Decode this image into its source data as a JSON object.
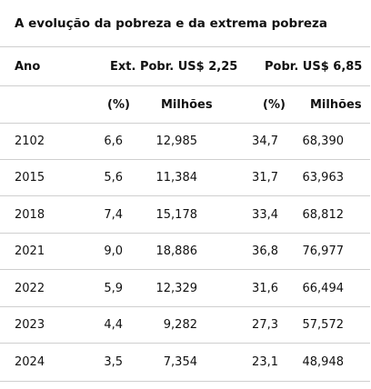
{
  "title": "A evolução da pobreza e da extrema pobreza",
  "header": {
    "col_year": "Ano",
    "col_ext": "Ext. Pobr. US$ 2,25",
    "col_pov": "Pobr. US$ 6,85"
  },
  "subheader": {
    "pct1": "(%)",
    "mil1": "Milhões",
    "pct2": "(%)",
    "mil2": "Milhões"
  },
  "rows": [
    {
      "year": "2102",
      "ext_pct": "6,6",
      "ext_mil": "12,985",
      "pov_pct": "34,7",
      "pov_mil": "68,390"
    },
    {
      "year": "2015",
      "ext_pct": "5,6",
      "ext_mil": "11,384",
      "pov_pct": "31,7",
      "pov_mil": "63,963"
    },
    {
      "year": "2018",
      "ext_pct": "7,4",
      "ext_mil": "15,178",
      "pov_pct": "33,4",
      "pov_mil": "68,812"
    },
    {
      "year": "2021",
      "ext_pct": "9,0",
      "ext_mil": "18,886",
      "pov_pct": "36,8",
      "pov_mil": "76,977"
    },
    {
      "year": "2022",
      "ext_pct": "5,9",
      "ext_mil": "12,329",
      "pov_pct": "31,6",
      "pov_mil": "66,494"
    },
    {
      "year": "2023",
      "ext_pct": "4,4",
      "ext_mil": "9,282",
      "pov_pct": "27,3",
      "pov_mil": "57,572"
    },
    {
      "year": "2024",
      "ext_pct": "3,5",
      "ext_mil": "7,354",
      "pov_pct": "23,1",
      "pov_mil": "48,948"
    }
  ]
}
